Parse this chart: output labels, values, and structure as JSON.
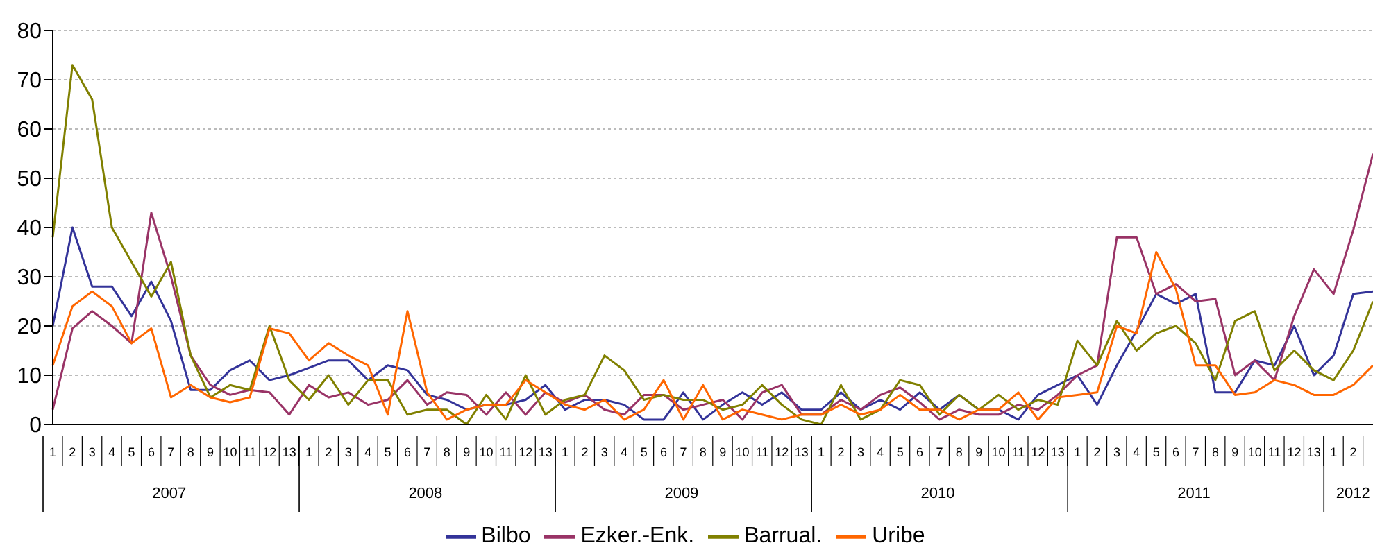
{
  "chart_data": {
    "type": "line",
    "categories": [
      "1",
      "2",
      "3",
      "4",
      "5",
      "6",
      "7",
      "8",
      "9",
      "10",
      "11",
      "12",
      "13",
      "1",
      "2",
      "3",
      "4",
      "5",
      "6",
      "7",
      "8",
      "9",
      "10",
      "11",
      "12",
      "13",
      "1",
      "2",
      "3",
      "4",
      "5",
      "6",
      "7",
      "8",
      "9",
      "10",
      "11",
      "12",
      "13",
      "1",
      "2",
      "3",
      "4",
      "5",
      "6",
      "7",
      "8",
      "9",
      "10",
      "11",
      "12",
      "13",
      "1",
      "2",
      "3",
      "4",
      "5",
      "6",
      "7",
      "8",
      "9",
      "10",
      "11",
      "12",
      "13",
      "1",
      "2",
      null
    ],
    "annotations": [
      "2007",
      "2008",
      "2009",
      "2010",
      "2011",
      "2012"
    ],
    "series": [
      {
        "name": "Bilbo",
        "color": "#333399",
        "values": [
          20,
          40,
          28,
          28,
          22,
          29,
          21,
          7,
          7,
          11,
          13,
          9,
          10,
          11.5,
          13,
          13,
          9,
          12,
          11,
          6,
          5,
          3,
          4,
          4,
          5,
          8,
          3,
          5,
          5,
          4,
          1,
          1,
          6.5,
          1,
          4,
          6.5,
          4,
          6.5,
          3,
          3,
          6.5,
          3,
          5,
          3,
          6.5,
          3,
          6,
          3,
          3,
          1,
          6,
          8,
          10,
          4,
          12,
          19,
          26.5,
          24.5,
          26.5,
          6.5,
          6.5,
          13,
          12,
          20,
          10,
          14,
          26.5,
          27
        ]
      },
      {
        "name": "Ezker.-Enk.",
        "color": "#993366",
        "values": [
          3,
          19.5,
          23,
          20,
          16.5,
          43,
          30,
          14,
          8,
          6,
          7,
          6.5,
          2,
          8,
          5.5,
          6.5,
          4,
          5,
          9,
          4,
          6.5,
          6,
          2,
          6.5,
          2,
          6.5,
          4.5,
          6,
          3,
          2,
          6,
          6,
          3,
          4,
          5,
          1,
          6.5,
          8,
          2,
          2,
          5,
          3,
          6,
          7.5,
          4.5,
          1,
          3,
          2,
          2,
          4,
          3,
          6,
          10,
          12,
          38,
          38,
          26.5,
          28.5,
          25,
          25.5,
          10,
          13,
          9,
          22,
          31.5,
          26.5,
          39.5,
          55
        ]
      },
      {
        "name": "Barrual.",
        "color": "#808000",
        "values": [
          38,
          73,
          66,
          40,
          33,
          26,
          33,
          14,
          5.5,
          8,
          7,
          20,
          9,
          5,
          10,
          4,
          9,
          9,
          2,
          3,
          3,
          0,
          6,
          1,
          10,
          2,
          5,
          6,
          14,
          11,
          5,
          6,
          5,
          5,
          3,
          4,
          8,
          4,
          1,
          0,
          8,
          1,
          3,
          9,
          8,
          2,
          6,
          3,
          6,
          3,
          5,
          4,
          17,
          12,
          21,
          15,
          18.5,
          20,
          16.5,
          9,
          21,
          23,
          11,
          15,
          11,
          9,
          15,
          25
        ]
      },
      {
        "name": "Uribe",
        "color": "#ff6600",
        "values": [
          12,
          24,
          27,
          24,
          16.5,
          19.5,
          5.5,
          8,
          5.5,
          4.5,
          5.5,
          19.5,
          18.5,
          13,
          16.5,
          14,
          12,
          2,
          23,
          6.5,
          1,
          3,
          4,
          4,
          9,
          6.5,
          4,
          3,
          5,
          1,
          3,
          9,
          1,
          8,
          1,
          3,
          2,
          1,
          2,
          2,
          4,
          2,
          3,
          6,
          3,
          3,
          1,
          3,
          3,
          6.5,
          1,
          5.5,
          6,
          6.5,
          20,
          18.5,
          35,
          27.5,
          12,
          12,
          6,
          6.5,
          9,
          8,
          6,
          6,
          8,
          12
        ]
      }
    ],
    "ylim": [
      0,
      80
    ],
    "yticks": [
      0,
      10,
      20,
      30,
      40,
      50,
      60,
      70,
      80
    ],
    "grid": "y",
    "legend": "bottom",
    "marker": "none",
    "line_style": "solid"
  }
}
